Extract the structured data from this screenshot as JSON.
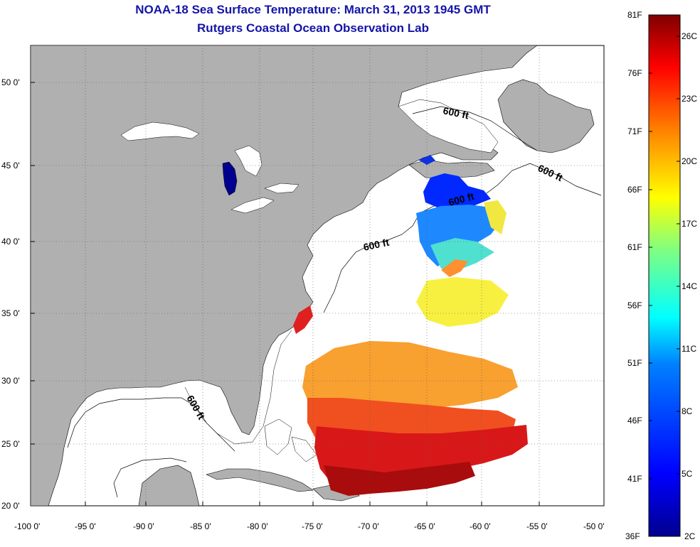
{
  "title": "NOAA-18 Sea Surface Temperature:  March 31, 2013 1945 GMT",
  "subtitle": "Rutgers Coastal Ocean Observation Lab",
  "x_ticks": [
    "-100 0'",
    "-95 0'",
    "-90 0'",
    "-85 0'",
    "-80 0'",
    "-75 0'",
    "-70 0'",
    "-65 0'",
    "-60 0'",
    "-55 0'",
    "-50 0'"
  ],
  "y_ticks": [
    "50 0'",
    "45 0'",
    "40 0'",
    "35 0'",
    "30 0'",
    "25 0'",
    "20 0'"
  ],
  "contour_label": "600 ft",
  "colorbar": {
    "fahrenheit": [
      "81F",
      "76F",
      "71F",
      "66F",
      "61F",
      "56F",
      "51F",
      "46F",
      "41F",
      "36F"
    ],
    "celsius": [
      "26C",
      "23C",
      "20C",
      "17C",
      "14C",
      "11C",
      "8C",
      "5C",
      "2C"
    ],
    "colors": [
      "#7f0000",
      "#ff0000",
      "#ff8000",
      "#ffff00",
      "#80ff80",
      "#00ffff",
      "#0080ff",
      "#0000ff",
      "#00008f"
    ]
  },
  "colors": {
    "title": "#1414a8",
    "land": "#b0b0b0",
    "ocean": "#ffffff"
  }
}
